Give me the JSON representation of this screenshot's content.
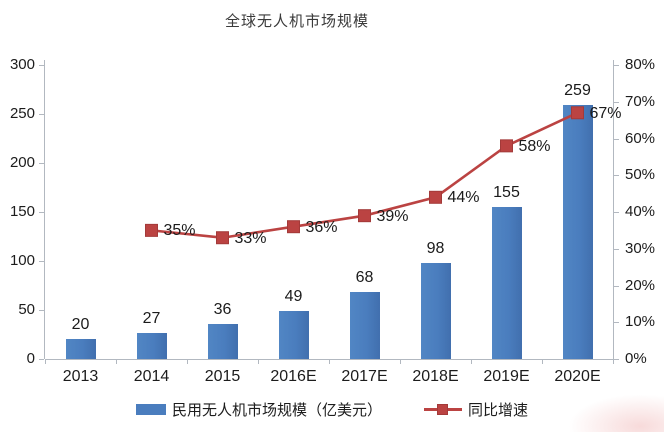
{
  "title": "全球无人机市场规模",
  "colors": {
    "bar": "#4a7dbe",
    "line": "#bb4342",
    "marker_border": "#a33a39",
    "axis": "#b2b8c0",
    "text": "#1c1c1c"
  },
  "chart_data": {
    "type": "bar+line",
    "title": "全球无人机市场规模",
    "categories": [
      "2013",
      "2014",
      "2015",
      "2016E",
      "2017E",
      "2018E",
      "2019E",
      "2020E"
    ],
    "series": [
      {
        "name": "民用无人机市场规模（亿美元）",
        "type": "bar",
        "axis": "left",
        "color": "#4a7dbe",
        "values": [
          20,
          27,
          36,
          49,
          68,
          98,
          155,
          259
        ],
        "labels": [
          "20",
          "27",
          "36",
          "49",
          "68",
          "98",
          "155",
          "259"
        ]
      },
      {
        "name": "同比增速",
        "type": "line",
        "axis": "right",
        "color": "#bb4342",
        "marker": "square",
        "values": [
          null,
          35,
          33,
          36,
          39,
          44,
          58,
          67
        ],
        "labels": [
          null,
          "35%",
          "33%",
          "36%",
          "39%",
          "44%",
          "58%",
          "67%"
        ]
      }
    ],
    "left_axis": {
      "min": 0,
      "max": 300,
      "step": 50,
      "ticks": [
        "0",
        "50",
        "100",
        "150",
        "200",
        "250",
        "300"
      ]
    },
    "right_axis": {
      "min": 0,
      "max": 80,
      "step": 10,
      "ticks": [
        "0%",
        "10%",
        "20%",
        "30%",
        "40%",
        "50%",
        "60%",
        "70%",
        "80%"
      ]
    },
    "grid": false,
    "legend_position": "bottom",
    "legend": [
      "民用无人机市场规模（亿美元）",
      "同比增速"
    ]
  }
}
